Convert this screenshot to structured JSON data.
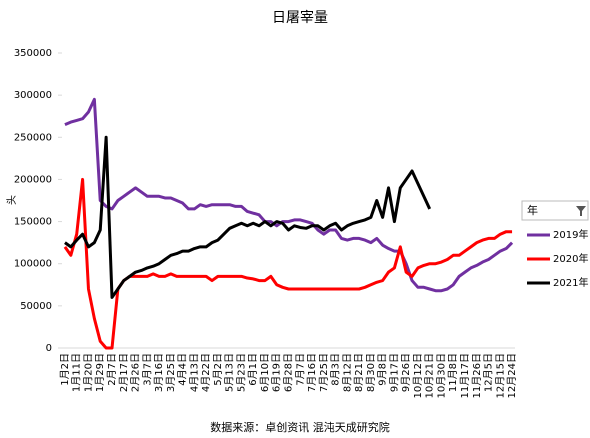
{
  "chart_data": {
    "type": "line",
    "title": "日屠宰量",
    "y_label": "头",
    "source": "数据来源：卓创资讯 混沌天成研究院",
    "legend_title": "年",
    "legend": "right",
    "categories": [
      "1月2日",
      null,
      "1月11日",
      null,
      "1月20日",
      null,
      "1月29日",
      null,
      "2月7日",
      null,
      "2月17日",
      null,
      "2月26日",
      null,
      "3月7日",
      null,
      "3月16日",
      null,
      "3月25日",
      null,
      "4月4日",
      null,
      "4月13日",
      null,
      "4月22日",
      null,
      "5月2日",
      null,
      "5月13日",
      null,
      "5月23日",
      null,
      "6月1日",
      null,
      "6月10日",
      null,
      "6月19日",
      null,
      "6月28日",
      null,
      "7月7日",
      null,
      "7月16日",
      null,
      "7月25日",
      null,
      "8月3日",
      null,
      "8月12日",
      null,
      "8月21日",
      null,
      "8月30日",
      null,
      "9月8日",
      null,
      "9月17日",
      null,
      "9月26日",
      null,
      "10月12日",
      null,
      "10月21日",
      null,
      "10月30日",
      null,
      "11月8日",
      null,
      "11月17日",
      null,
      "11月26日",
      null,
      "12月5日",
      null,
      "12月15日",
      null,
      "12月24日"
    ],
    "series": [
      {
        "name": "2019年",
        "color": "#7030a0",
        "values": [
          265000,
          268000,
          270000,
          272000,
          280000,
          295000,
          175000,
          168000,
          165000,
          175000,
          180000,
          185000,
          190000,
          185000,
          180000,
          180000,
          180000,
          178000,
          178000,
          175000,
          172000,
          165000,
          165000,
          170000,
          168000,
          170000,
          170000,
          170000,
          170000,
          168000,
          168000,
          162000,
          160000,
          158000,
          150000,
          150000,
          145000,
          150000,
          150000,
          152000,
          152000,
          150000,
          148000,
          140000,
          135000,
          140000,
          140000,
          130000,
          128000,
          130000,
          130000,
          128000,
          125000,
          130000,
          122000,
          118000,
          115000,
          115000,
          100000,
          80000,
          72000,
          72000,
          70000,
          68000,
          68000,
          70000,
          75000,
          85000,
          90000,
          95000,
          98000,
          102000,
          105000,
          110000,
          115000,
          118000,
          125000
        ]
      },
      {
        "name": "2020年",
        "color": "#ff0000",
        "values": [
          120000,
          110000,
          135000,
          200000,
          70000,
          35000,
          8000,
          0,
          0,
          70000,
          80000,
          85000,
          85000,
          85000,
          85000,
          88000,
          85000,
          85000,
          88000,
          85000,
          85000,
          85000,
          85000,
          85000,
          85000,
          80000,
          85000,
          85000,
          85000,
          85000,
          85000,
          83000,
          82000,
          80000,
          80000,
          85000,
          75000,
          72000,
          70000,
          70000,
          70000,
          70000,
          70000,
          70000,
          70000,
          70000,
          70000,
          70000,
          70000,
          70000,
          70000,
          72000,
          75000,
          78000,
          80000,
          90000,
          95000,
          120000,
          90000,
          85000,
          95000,
          98000,
          100000,
          100000,
          102000,
          105000,
          110000,
          110000,
          115000,
          120000,
          125000,
          128000,
          130000,
          130000,
          135000,
          138000,
          138000
        ]
      },
      {
        "name": "2021年",
        "color": "#000000",
        "values": [
          125000,
          120000,
          128000,
          135000,
          120000,
          125000,
          140000,
          250000,
          60000,
          70000,
          80000,
          85000,
          90000,
          92000,
          95000,
          97000,
          100000,
          105000,
          110000,
          112000,
          115000,
          115000,
          118000,
          120000,
          120000,
          125000,
          128000,
          135000,
          142000,
          145000,
          148000,
          145000,
          148000,
          145000,
          150000,
          145000,
          150000,
          148000,
          140000,
          145000,
          143000,
          142000,
          145000,
          145000,
          140000,
          145000,
          148000,
          140000,
          145000,
          148000,
          150000,
          152000,
          155000,
          175000,
          155000,
          190000,
          150000,
          190000,
          200000,
          210000,
          195000,
          180000,
          165000,
          null,
          null,
          null,
          null,
          null,
          null,
          null,
          null,
          null,
          null,
          null,
          null,
          null,
          null
        ]
      }
    ],
    "ylim": [
      0,
      350000
    ],
    "yticks": [
      0,
      50000,
      100000,
      150000,
      200000,
      250000,
      300000,
      350000
    ],
    "grid": false
  }
}
